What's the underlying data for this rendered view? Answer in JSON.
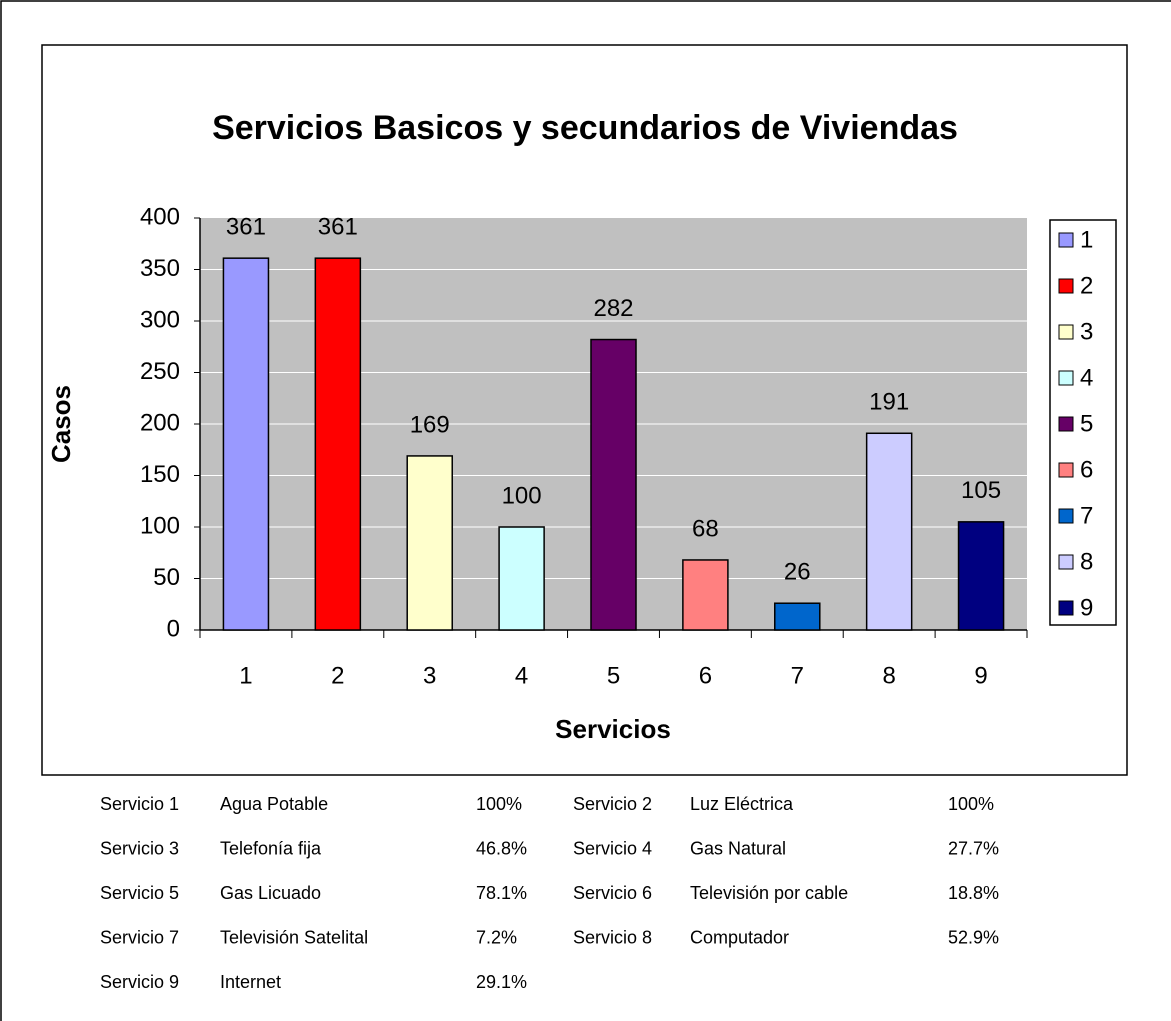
{
  "chart_data": {
    "type": "bar",
    "title": "Servicios Basicos y secundarios de Viviendas",
    "x_label": "Servicios",
    "y_label": "Casos",
    "categories": [
      "1",
      "2",
      "3",
      "4",
      "5",
      "6",
      "7",
      "8",
      "9"
    ],
    "values": [
      361,
      361,
      169,
      100,
      282,
      68,
      26,
      191,
      105
    ],
    "colors": [
      "#9999ff",
      "#ff0000",
      "#ffffcc",
      "#ccffff",
      "#660066",
      "#ff8080",
      "#0066cc",
      "#ccccff",
      "#000080"
    ],
    "ylim": [
      0,
      400
    ],
    "yticks": [
      0,
      50,
      100,
      150,
      200,
      250,
      300,
      350,
      400
    ],
    "grid": true,
    "legend": "right"
  },
  "services_table": [
    [
      "Servicio 1",
      "Agua Potable",
      "100%",
      "Servicio 2",
      "Luz Eléctrica",
      "100%"
    ],
    [
      "Servicio 3",
      "Telefonía fija",
      "46.8%",
      "Servicio 4",
      "Gas Natural",
      "27.7%"
    ],
    [
      "Servicio 5",
      "Gas Licuado",
      "78.1%",
      "Servicio 6",
      "Televisión por cable",
      "18.8%"
    ],
    [
      "Servicio 7",
      "Televisión Satelital",
      "7.2%",
      "Servicio 8",
      "Computador",
      "52.9%"
    ],
    [
      "Servicio 9",
      "Internet",
      "29.1%"
    ]
  ]
}
